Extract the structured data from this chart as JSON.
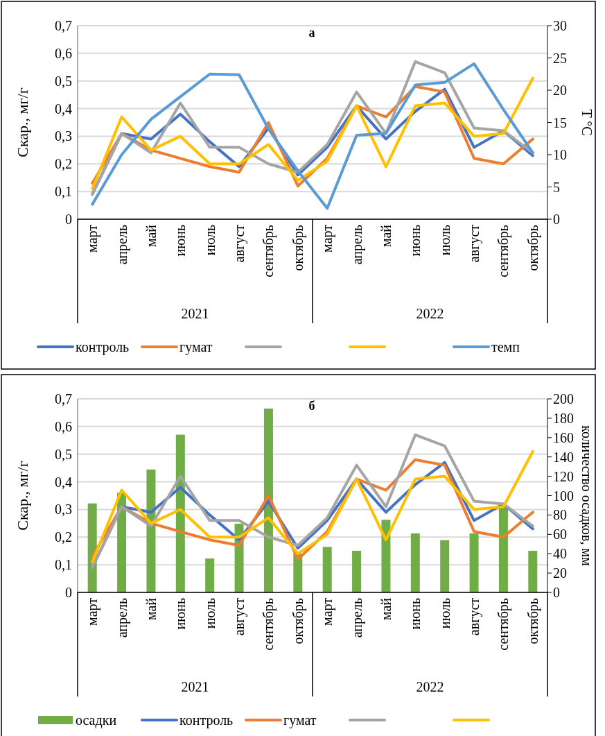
{
  "chart_data": [
    {
      "type": "line",
      "title": "а",
      "ylabel": "Скар., мг/г",
      "y2label": "T °C",
      "categories": [
        "март",
        "апрель",
        "май",
        "июнь",
        "июль",
        "август",
        "сентябрь",
        "октябрь",
        "март",
        "апрель",
        "май",
        "июнь",
        "июль",
        "август",
        "сентябрь",
        "октябрь"
      ],
      "annotations": [
        "2021",
        "2022"
      ],
      "ylim": [
        0,
        0.7
      ],
      "yticks": [
        {
          "value": 0,
          "label": "0"
        },
        {
          "value": 0.1,
          "label": "0,1"
        },
        {
          "value": 0.2,
          "label": "0,2"
        },
        {
          "value": 0.3,
          "label": "0,3"
        },
        {
          "value": 0.4,
          "label": "0,4"
        },
        {
          "value": 0.5,
          "label": "0,5"
        },
        {
          "value": 0.6,
          "label": "0,6"
        },
        {
          "value": 0.7,
          "label": "0,7"
        }
      ],
      "y2lim": [
        0,
        30
      ],
      "y2ticks": [
        0,
        5,
        10,
        15,
        20,
        25,
        30
      ],
      "grid": "y",
      "legend": "bottom",
      "series": [
        {
          "name": "контроль",
          "color": "#4472c4",
          "values": [
            0.09,
            0.31,
            0.29,
            0.38,
            0.28,
            0.19,
            0.33,
            0.16,
            0.26,
            0.41,
            0.29,
            0.39,
            0.47,
            0.26,
            0.32,
            0.23
          ]
        },
        {
          "name": "гумат",
          "color": "#ed7d31",
          "values": [
            0.13,
            0.31,
            0.25,
            0.22,
            0.19,
            0.17,
            0.35,
            0.12,
            0.22,
            0.41,
            0.37,
            0.48,
            0.46,
            0.22,
            0.2,
            0.29
          ]
        },
        {
          "color": "#a5a5a5",
          "values": [
            0.09,
            0.31,
            0.24,
            0.42,
            0.26,
            0.26,
            0.2,
            0.17,
            0.27,
            0.46,
            0.31,
            0.57,
            0.53,
            0.33,
            0.32,
            0.24
          ]
        },
        {
          "color": "#ffc000",
          "values": [
            0.11,
            0.37,
            0.25,
            0.3,
            0.2,
            0.2,
            0.27,
            0.14,
            0.21,
            0.41,
            0.19,
            0.41,
            0.42,
            0.3,
            0.31,
            0.51
          ]
        },
        {
          "name": "темп",
          "color": "#5b9bd5",
          "axis": "y2",
          "values": [
            2.3,
            10,
            15.5,
            19,
            22.5,
            22.4,
            14,
            7.5,
            1.7,
            13,
            13.3,
            20.8,
            21.2,
            24.1,
            17,
            10.3
          ]
        }
      ]
    },
    {
      "type": "line",
      "title": "б",
      "ylabel": "Скар., мг/г",
      "y2label": "количество осадков, мм",
      "categories": [
        "март",
        "апрель",
        "май",
        "июнь",
        "июль",
        "август",
        "сентябрь",
        "октябрь",
        "март",
        "апрель",
        "май",
        "июнь",
        "июль",
        "август",
        "сентябрь",
        "октябрь"
      ],
      "annotations": [
        "2021",
        "2022"
      ],
      "ylim": [
        0,
        0.7
      ],
      "yticks": [
        {
          "value": 0,
          "label": "0"
        },
        {
          "value": 0.1,
          "label": "0,1"
        },
        {
          "value": 0.2,
          "label": "0,2"
        },
        {
          "value": 0.3,
          "label": "0,3"
        },
        {
          "value": 0.4,
          "label": "0,4"
        },
        {
          "value": 0.5,
          "label": "0,5"
        },
        {
          "value": 0.6,
          "label": "0,6"
        },
        {
          "value": 0.7,
          "label": "0,7"
        }
      ],
      "y2lim": [
        0,
        200
      ],
      "y2ticks": [
        0,
        20,
        40,
        60,
        80,
        100,
        120,
        140,
        160,
        180,
        200
      ],
      "grid": "y",
      "legend": "bottom",
      "series": [
        {
          "name": "осадки",
          "type": "bar",
          "color": "#70ad47",
          "axis": "y2",
          "values": [
            92,
            103,
            127,
            163,
            35,
            71,
            190,
            40,
            47,
            43,
            75,
            61,
            54,
            61,
            89,
            43
          ]
        },
        {
          "name": "контроль",
          "color": "#4472c4",
          "values": [
            0.09,
            0.31,
            0.29,
            0.38,
            0.28,
            0.19,
            0.33,
            0.16,
            0.26,
            0.41,
            0.29,
            0.39,
            0.47,
            0.26,
            0.32,
            0.23
          ]
        },
        {
          "name": "гумат",
          "color": "#ed7d31",
          "values": [
            0.13,
            0.31,
            0.25,
            0.22,
            0.19,
            0.17,
            0.35,
            0.12,
            0.22,
            0.41,
            0.37,
            0.48,
            0.46,
            0.22,
            0.2,
            0.29
          ]
        },
        {
          "color": "#a5a5a5",
          "values": [
            0.09,
            0.31,
            0.24,
            0.42,
            0.26,
            0.26,
            0.2,
            0.17,
            0.27,
            0.46,
            0.31,
            0.57,
            0.53,
            0.33,
            0.32,
            0.24
          ]
        },
        {
          "color": "#ffc000",
          "values": [
            0.11,
            0.37,
            0.25,
            0.3,
            0.2,
            0.2,
            0.27,
            0.14,
            0.21,
            0.41,
            0.19,
            0.41,
            0.42,
            0.3,
            0.31,
            0.51
          ]
        }
      ]
    }
  ]
}
